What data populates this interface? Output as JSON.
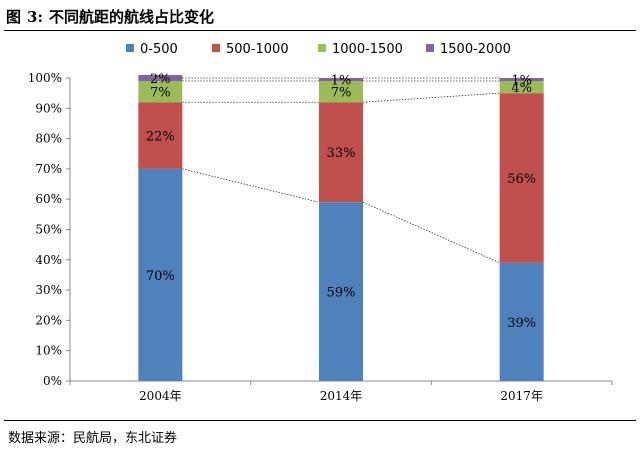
{
  "figure": {
    "label": "图",
    "number": "3:",
    "title": "不同航距的航线占比变化"
  },
  "source": "数据来源：民航局，东北证券",
  "chart_data": {
    "type": "bar",
    "stacked": true,
    "categories": [
      "2004年",
      "2014年",
      "2017年"
    ],
    "series": [
      {
        "name": "0-500",
        "color": "#4F81BD",
        "values": [
          70,
          59,
          39
        ],
        "labels": [
          "70%",
          "59%",
          "39%"
        ]
      },
      {
        "name": "500-1000",
        "color": "#C0504D",
        "values": [
          22,
          33,
          56
        ],
        "labels": [
          "22%",
          "33%",
          "56%"
        ]
      },
      {
        "name": "1000-1500",
        "color": "#9BBB59",
        "values": [
          7,
          7,
          4
        ],
        "labels": [
          "7%",
          "7%",
          "4%"
        ]
      },
      {
        "name": "1500-2000",
        "color": "#8064A2",
        "values": [
          2,
          1,
          1
        ],
        "labels": [
          "2%",
          "1%",
          "1%"
        ]
      }
    ],
    "ylim": [
      0,
      100
    ],
    "yticks": [
      "0%",
      "10%",
      "20%",
      "30%",
      "40%",
      "50%",
      "60%",
      "70%",
      "80%",
      "90%",
      "100%"
    ],
    "legend_position": "top",
    "connector_lines": true
  }
}
